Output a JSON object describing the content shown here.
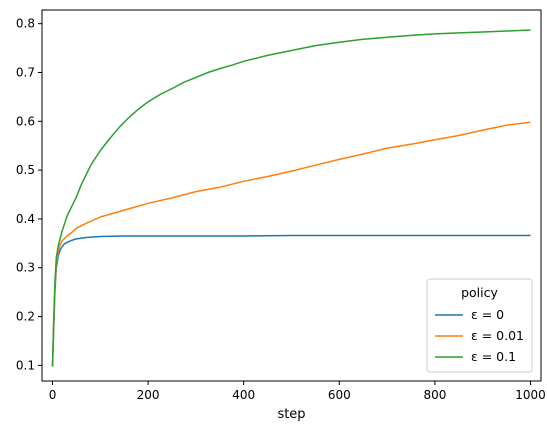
{
  "chart_data": {
    "type": "line",
    "title": "",
    "xlabel": "step",
    "ylabel": "",
    "xlim": [
      -22,
      1022
    ],
    "ylim": [
      0.068,
      0.828
    ],
    "xticks": [
      0,
      200,
      400,
      600,
      800,
      1000
    ],
    "yticks": [
      0.1,
      0.2,
      0.3,
      0.4,
      0.5,
      0.6,
      0.7,
      0.8
    ],
    "grid": false,
    "legend": {
      "title": "policy",
      "placement": "lower-right"
    },
    "series": [
      {
        "name": "ε = 0",
        "color": "#1f77b4",
        "x": [
          0,
          2,
          5,
          8,
          12,
          16,
          20,
          25,
          30,
          40,
          50,
          70,
          100,
          150,
          200,
          300,
          400,
          500,
          600,
          700,
          800,
          900,
          1000
        ],
        "y": [
          0.098,
          0.16,
          0.25,
          0.3,
          0.325,
          0.337,
          0.343,
          0.349,
          0.352,
          0.356,
          0.359,
          0.362,
          0.364,
          0.365,
          0.365,
          0.365,
          0.365,
          0.366,
          0.366,
          0.366,
          0.366,
          0.366,
          0.366
        ]
      },
      {
        "name": "ε = 0.01",
        "color": "#ff7f0e",
        "x": [
          0,
          2,
          5,
          8,
          12,
          16,
          20,
          25,
          30,
          40,
          50,
          75,
          100,
          150,
          200,
          250,
          300,
          350,
          400,
          450,
          500,
          550,
          600,
          650,
          700,
          750,
          800,
          850,
          900,
          950,
          1000
        ],
        "y": [
          0.098,
          0.17,
          0.26,
          0.31,
          0.335,
          0.347,
          0.355,
          0.36,
          0.365,
          0.372,
          0.381,
          0.393,
          0.404,
          0.418,
          0.432,
          0.443,
          0.456,
          0.465,
          0.477,
          0.487,
          0.498,
          0.51,
          0.522,
          0.533,
          0.545,
          0.553,
          0.562,
          0.571,
          0.582,
          0.592,
          0.598
        ]
      },
      {
        "name": "ε = 0.1",
        "color": "#2ca02c",
        "x": [
          0,
          2,
          5,
          8,
          12,
          16,
          20,
          25,
          30,
          35,
          40,
          50,
          60,
          70,
          80,
          90,
          100,
          120,
          140,
          160,
          180,
          200,
          225,
          250,
          275,
          300,
          325,
          350,
          375,
          400,
          450,
          500,
          550,
          600,
          650,
          700,
          750,
          800,
          850,
          900,
          950,
          1000
        ],
        "y": [
          0.098,
          0.18,
          0.27,
          0.32,
          0.345,
          0.36,
          0.375,
          0.39,
          0.405,
          0.415,
          0.425,
          0.445,
          0.47,
          0.49,
          0.51,
          0.525,
          0.54,
          0.565,
          0.588,
          0.608,
          0.625,
          0.64,
          0.655,
          0.667,
          0.68,
          0.69,
          0.7,
          0.708,
          0.715,
          0.723,
          0.735,
          0.745,
          0.755,
          0.762,
          0.768,
          0.772,
          0.776,
          0.779,
          0.781,
          0.783,
          0.785,
          0.787
        ]
      }
    ]
  }
}
